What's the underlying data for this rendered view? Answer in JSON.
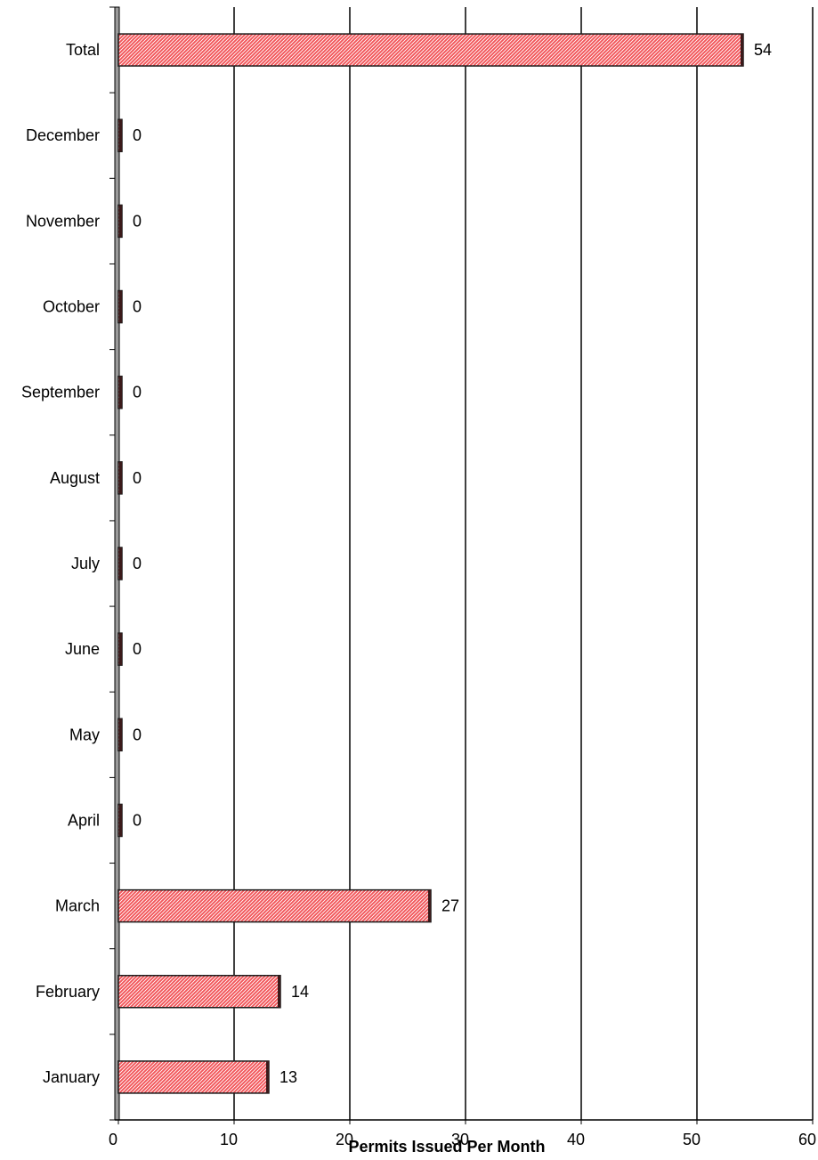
{
  "chart_data": {
    "type": "bar",
    "orientation": "horizontal",
    "categories": [
      "Total",
      "December",
      "November",
      "October",
      "September",
      "August",
      "July",
      "June",
      "May",
      "April",
      "March",
      "February",
      "January"
    ],
    "values": [
      54,
      0,
      0,
      0,
      0,
      0,
      0,
      0,
      0,
      0,
      27,
      14,
      13
    ],
    "data_labels": [
      "54",
      "0",
      "0",
      "0",
      "0",
      "0",
      "0",
      "0",
      "0",
      "0",
      "27",
      "14",
      "13"
    ],
    "xlabel": "Permits Issued Per Month",
    "ylabel": "",
    "xlim": [
      0,
      60
    ],
    "x_ticks": [
      "0",
      "10",
      "20",
      "30",
      "40",
      "50",
      "60"
    ],
    "grid": "vertical",
    "legend": "none",
    "bar_color": "#f2565a",
    "bar_hatch_color": "#ffffff",
    "bar_edge_color": "#1a1a1a"
  }
}
